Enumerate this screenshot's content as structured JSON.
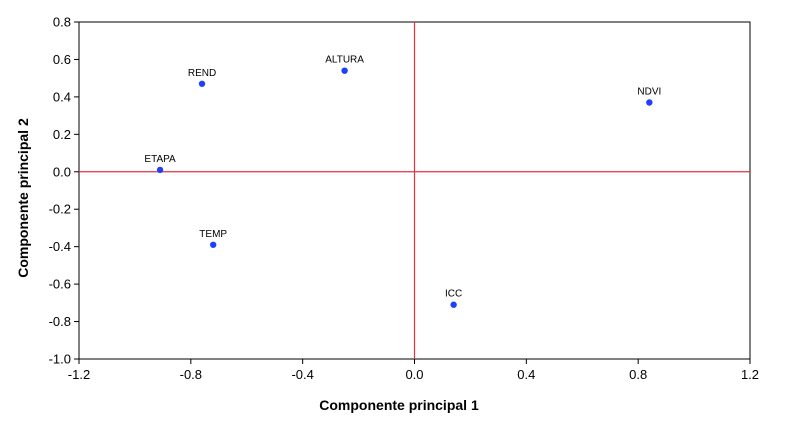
{
  "chart_data": {
    "type": "scatter",
    "title": "",
    "xlabel": "Componente principal 1",
    "ylabel": "Componente principal 2",
    "xlim": [
      -1.2,
      1.2
    ],
    "ylim": [
      -1.0,
      0.8
    ],
    "x_ticks": [
      "-1.2",
      "-0.8",
      "-0.4",
      "0.0",
      "0.4",
      "0.8",
      "1.2"
    ],
    "y_ticks": [
      "0.8",
      "0.6",
      "0.4",
      "0.2",
      "0.0",
      "-0.2",
      "-0.4",
      "-0.6",
      "-0.8",
      "-1.0"
    ],
    "grid": false,
    "reference_lines": {
      "x": 0.0,
      "y": 0.0,
      "color": "#e8303a"
    },
    "point_color": "#1f3fff",
    "points": [
      {
        "label": "REND",
        "x": -0.76,
        "y": 0.47
      },
      {
        "label": "ALTURA",
        "x": -0.25,
        "y": 0.54
      },
      {
        "label": "NDVI",
        "x": 0.84,
        "y": 0.37
      },
      {
        "label": "ETAPA",
        "x": -0.91,
        "y": 0.01
      },
      {
        "label": "TEMP",
        "x": -0.72,
        "y": -0.39
      },
      {
        "label": "ICC",
        "x": 0.14,
        "y": -0.71
      }
    ]
  }
}
